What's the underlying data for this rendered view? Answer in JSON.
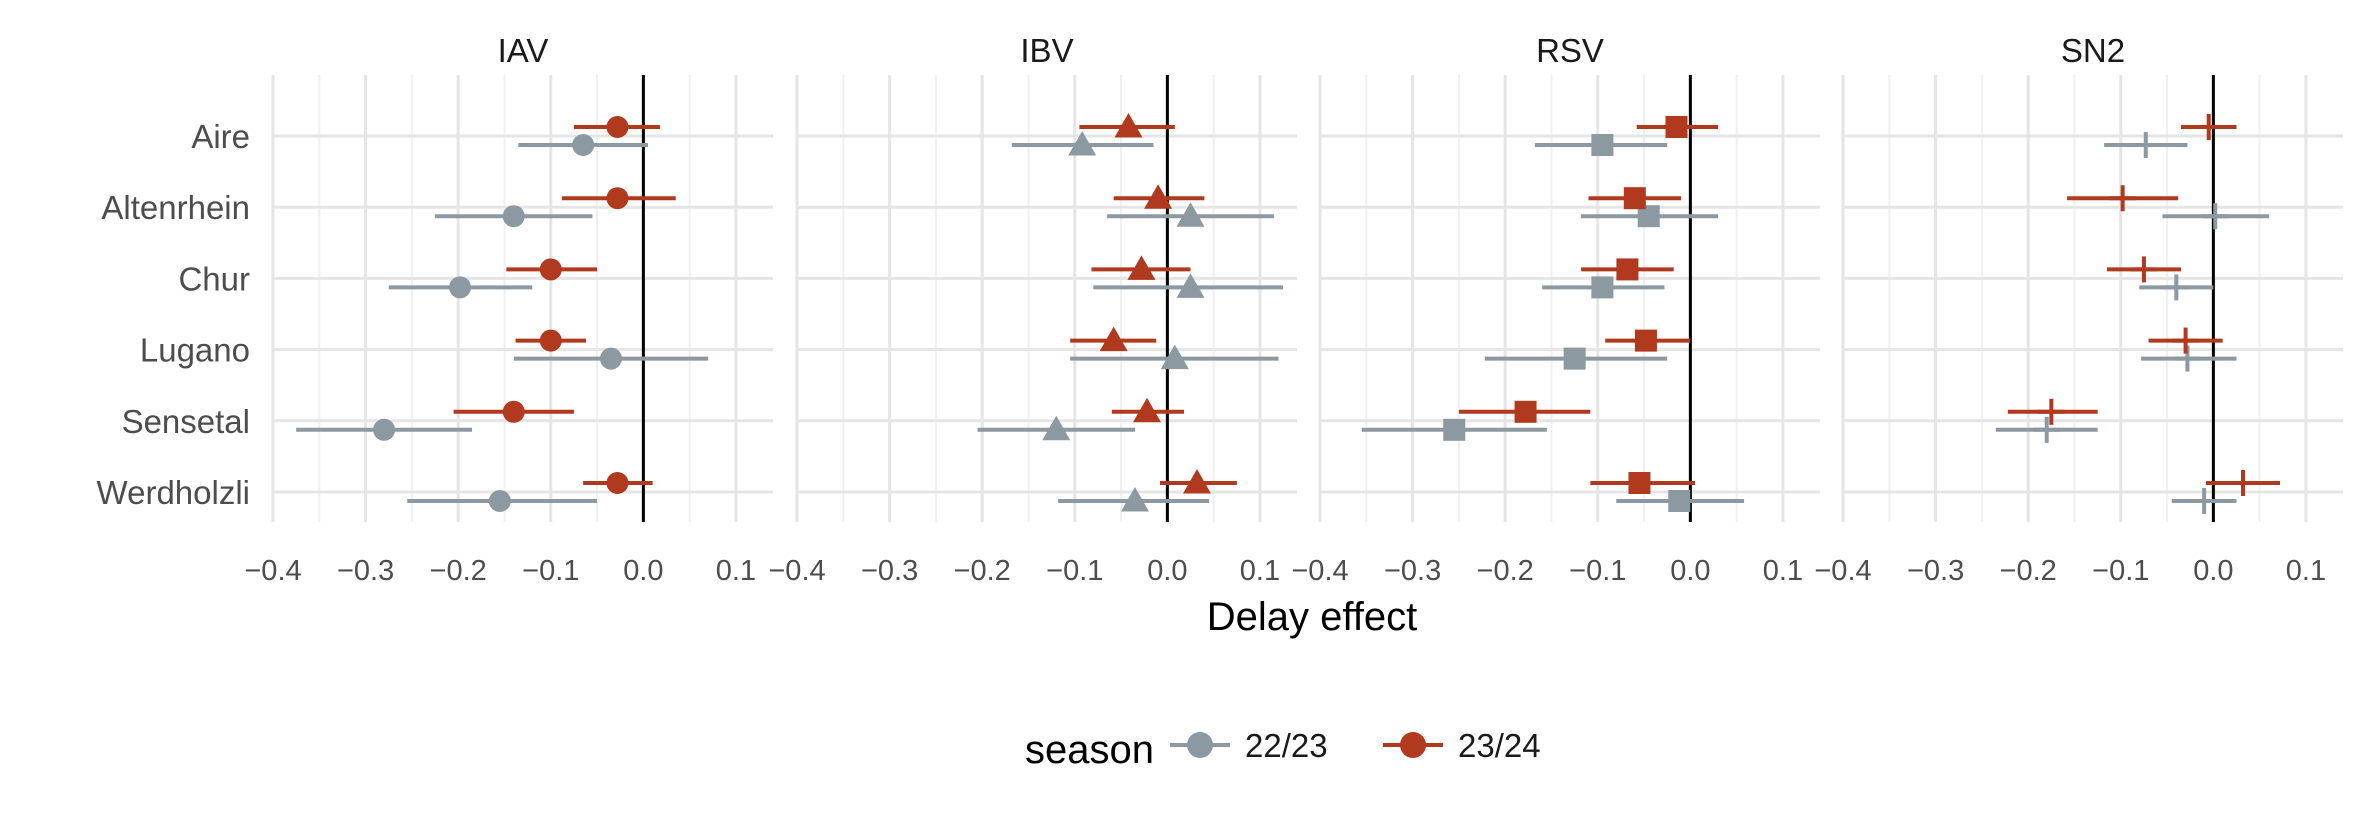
{
  "chart_data": {
    "type": "scatter",
    "subtype": "forest-plot-with-error-bars",
    "facets": [
      "IAV",
      "IBV",
      "RSV",
      "SN2"
    ],
    "facet_shapes": {
      "IAV": "circle",
      "IBV": "triangle",
      "RSV": "square",
      "SN2": "cross"
    },
    "rows": [
      "Aire",
      "Altenrhein",
      "Chur",
      "Lugano",
      "Sensetal",
      "Werdholzli"
    ],
    "xlabel": "Delay effect",
    "ylabel": "",
    "xlim": [
      -0.4,
      0.14
    ],
    "x_ticks": [
      -0.4,
      -0.3,
      -0.2,
      -0.1,
      0.0,
      0.1
    ],
    "x_tick_labels": [
      "−0.4",
      "−0.3",
      "−0.2",
      "−0.1",
      "0.0",
      "0.1"
    ],
    "reference_line_x": 0,
    "grid": true,
    "legend": {
      "title": "season",
      "position": "bottom",
      "entries": [
        {
          "name": "22/23",
          "color": "#8c99a1"
        },
        {
          "name": "23/24",
          "color": "#b0391e"
        }
      ]
    },
    "series": [
      {
        "name": "22/23",
        "color": "#8c99a1",
        "data": {
          "IAV": [
            {
              "row": "Aire",
              "est": -0.065,
              "lo": -0.135,
              "hi": 0.005
            },
            {
              "row": "Altenrhein",
              "est": -0.14,
              "lo": -0.225,
              "hi": -0.055
            },
            {
              "row": "Chur",
              "est": -0.198,
              "lo": -0.275,
              "hi": -0.12
            },
            {
              "row": "Lugano",
              "est": -0.035,
              "lo": -0.14,
              "hi": 0.07
            },
            {
              "row": "Sensetal",
              "est": -0.28,
              "lo": -0.375,
              "hi": -0.185
            },
            {
              "row": "Werdholzli",
              "est": -0.155,
              "lo": -0.255,
              "hi": -0.05
            }
          ],
          "IBV": [
            {
              "row": "Aire",
              "est": -0.092,
              "lo": -0.168,
              "hi": -0.015
            },
            {
              "row": "Altenrhein",
              "est": 0.025,
              "lo": -0.065,
              "hi": 0.115
            },
            {
              "row": "Chur",
              "est": 0.025,
              "lo": -0.08,
              "hi": 0.125
            },
            {
              "row": "Lugano",
              "est": 0.008,
              "lo": -0.105,
              "hi": 0.12
            },
            {
              "row": "Sensetal",
              "est": -0.12,
              "lo": -0.205,
              "hi": -0.035
            },
            {
              "row": "Werdholzli",
              "est": -0.035,
              "lo": -0.118,
              "hi": 0.045
            }
          ],
          "RSV": [
            {
              "row": "Aire",
              "est": -0.095,
              "lo": -0.168,
              "hi": -0.025
            },
            {
              "row": "Altenrhein",
              "est": -0.045,
              "lo": -0.118,
              "hi": 0.03
            },
            {
              "row": "Chur",
              "est": -0.095,
              "lo": -0.16,
              "hi": -0.028
            },
            {
              "row": "Lugano",
              "est": -0.125,
              "lo": -0.222,
              "hi": -0.025
            },
            {
              "row": "Sensetal",
              "est": -0.255,
              "lo": -0.355,
              "hi": -0.155
            },
            {
              "row": "Werdholzli",
              "est": -0.012,
              "lo": -0.08,
              "hi": 0.058
            }
          ],
          "SN2": [
            {
              "row": "Aire",
              "est": -0.073,
              "lo": -0.118,
              "hi": -0.028
            },
            {
              "row": "Altenrhein",
              "est": 0.002,
              "lo": -0.055,
              "hi": 0.06
            },
            {
              "row": "Chur",
              "est": -0.04,
              "lo": -0.08,
              "hi": 0.0
            },
            {
              "row": "Lugano",
              "est": -0.028,
              "lo": -0.078,
              "hi": 0.025
            },
            {
              "row": "Sensetal",
              "est": -0.18,
              "lo": -0.235,
              "hi": -0.125
            },
            {
              "row": "Werdholzli",
              "est": -0.01,
              "lo": -0.045,
              "hi": 0.025
            }
          ]
        }
      },
      {
        "name": "23/24",
        "color": "#b0391e",
        "data": {
          "IAV": [
            {
              "row": "Aire",
              "est": -0.028,
              "lo": -0.075,
              "hi": 0.018
            },
            {
              "row": "Altenrhein",
              "est": -0.028,
              "lo": -0.088,
              "hi": 0.035
            },
            {
              "row": "Chur",
              "est": -0.1,
              "lo": -0.148,
              "hi": -0.05
            },
            {
              "row": "Lugano",
              "est": -0.1,
              "lo": -0.138,
              "hi": -0.062
            },
            {
              "row": "Sensetal",
              "est": -0.14,
              "lo": -0.205,
              "hi": -0.075
            },
            {
              "row": "Werdholzli",
              "est": -0.028,
              "lo": -0.065,
              "hi": 0.01
            }
          ],
          "IBV": [
            {
              "row": "Aire",
              "est": -0.042,
              "lo": -0.095,
              "hi": 0.008
            },
            {
              "row": "Altenrhein",
              "est": -0.01,
              "lo": -0.058,
              "hi": 0.04
            },
            {
              "row": "Chur",
              "est": -0.028,
              "lo": -0.082,
              "hi": 0.025
            },
            {
              "row": "Lugano",
              "est": -0.058,
              "lo": -0.105,
              "hi": -0.012
            },
            {
              "row": "Sensetal",
              "est": -0.022,
              "lo": -0.06,
              "hi": 0.018
            },
            {
              "row": "Werdholzli",
              "est": 0.032,
              "lo": -0.008,
              "hi": 0.075
            }
          ],
          "RSV": [
            {
              "row": "Aire",
              "est": -0.015,
              "lo": -0.058,
              "hi": 0.03
            },
            {
              "row": "Altenrhein",
              "est": -0.06,
              "lo": -0.11,
              "hi": -0.01
            },
            {
              "row": "Chur",
              "est": -0.068,
              "lo": -0.118,
              "hi": -0.018
            },
            {
              "row": "Lugano",
              "est": -0.048,
              "lo": -0.092,
              "hi": 0.0
            },
            {
              "row": "Sensetal",
              "est": -0.178,
              "lo": -0.25,
              "hi": -0.108
            },
            {
              "row": "Werdholzli",
              "est": -0.055,
              "lo": -0.108,
              "hi": 0.005
            }
          ],
          "SN2": [
            {
              "row": "Aire",
              "est": -0.005,
              "lo": -0.035,
              "hi": 0.025
            },
            {
              "row": "Altenrhein",
              "est": -0.098,
              "lo": -0.158,
              "hi": -0.038
            },
            {
              "row": "Chur",
              "est": -0.075,
              "lo": -0.115,
              "hi": -0.035
            },
            {
              "row": "Lugano",
              "est": -0.03,
              "lo": -0.07,
              "hi": 0.01
            },
            {
              "row": "Sensetal",
              "est": -0.175,
              "lo": -0.222,
              "hi": -0.125
            },
            {
              "row": "Werdholzli",
              "est": 0.032,
              "lo": -0.008,
              "hi": 0.072
            }
          ]
        }
      }
    ]
  }
}
